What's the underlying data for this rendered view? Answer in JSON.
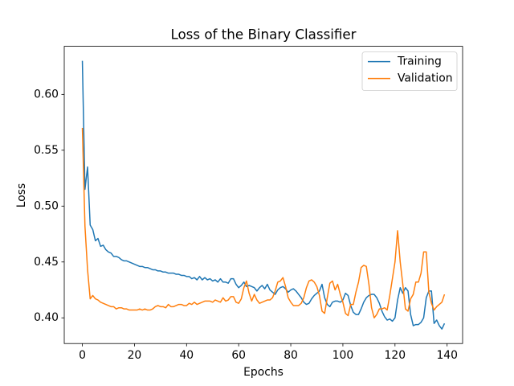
{
  "chart_data": {
    "type": "line",
    "title": "Loss of the Binary Classifier",
    "x_label": "Epochs",
    "y_label": "Loss",
    "x": [
      0,
      1,
      2,
      3,
      4,
      5,
      6,
      7,
      8,
      9,
      10,
      11,
      12,
      13,
      14,
      15,
      16,
      17,
      18,
      19,
      20,
      21,
      22,
      23,
      24,
      25,
      26,
      27,
      28,
      29,
      30,
      31,
      32,
      33,
      34,
      35,
      36,
      37,
      38,
      39,
      40,
      41,
      42,
      43,
      44,
      45,
      46,
      47,
      48,
      49,
      50,
      51,
      52,
      53,
      54,
      55,
      56,
      57,
      58,
      59,
      60,
      61,
      62,
      63,
      64,
      65,
      66,
      67,
      68,
      69,
      70,
      71,
      72,
      73,
      74,
      75,
      76,
      77,
      78,
      79,
      80,
      81,
      82,
      83,
      84,
      85,
      86,
      87,
      88,
      89,
      90,
      91,
      92,
      93,
      94,
      95,
      96,
      97,
      98,
      99,
      100,
      101,
      102,
      103,
      104,
      105,
      106,
      107,
      108,
      109,
      110,
      111,
      112,
      113,
      114,
      115,
      116,
      117,
      118,
      119,
      120,
      121,
      122,
      123,
      124,
      125,
      126,
      127,
      128,
      129,
      130,
      131,
      132,
      133,
      134,
      135,
      136,
      137,
      138,
      139
    ],
    "series": [
      {
        "name": "Training",
        "color": "#1f77b4",
        "values": [
          0.63,
          0.515,
          0.535,
          0.483,
          0.479,
          0.469,
          0.471,
          0.464,
          0.465,
          0.461,
          0.459,
          0.458,
          0.455,
          0.455,
          0.454,
          0.452,
          0.451,
          0.451,
          0.45,
          0.449,
          0.448,
          0.447,
          0.446,
          0.446,
          0.445,
          0.445,
          0.444,
          0.443,
          0.443,
          0.442,
          0.442,
          0.441,
          0.441,
          0.44,
          0.44,
          0.44,
          0.439,
          0.439,
          0.438,
          0.438,
          0.437,
          0.437,
          0.435,
          0.436,
          0.434,
          0.437,
          0.434,
          0.436,
          0.434,
          0.435,
          0.433,
          0.434,
          0.432,
          0.435,
          0.432,
          0.432,
          0.431,
          0.435,
          0.435,
          0.43,
          0.427,
          0.429,
          0.432,
          0.428,
          0.429,
          0.428,
          0.427,
          0.424,
          0.427,
          0.429,
          0.426,
          0.43,
          0.425,
          0.423,
          0.421,
          0.425,
          0.427,
          0.428,
          0.426,
          0.423,
          0.425,
          0.426,
          0.424,
          0.421,
          0.418,
          0.414,
          0.412,
          0.413,
          0.417,
          0.42,
          0.422,
          0.424,
          0.43,
          0.418,
          0.412,
          0.41,
          0.414,
          0.415,
          0.415,
          0.414,
          0.416,
          0.422,
          0.42,
          0.411,
          0.405,
          0.403,
          0.403,
          0.408,
          0.414,
          0.418,
          0.42,
          0.421,
          0.421,
          0.418,
          0.413,
          0.406,
          0.401,
          0.398,
          0.399,
          0.397,
          0.4,
          0.416,
          0.427,
          0.422,
          0.427,
          0.424,
          0.403,
          0.393,
          0.394,
          0.394,
          0.396,
          0.4,
          0.418,
          0.424,
          0.424,
          0.395,
          0.398,
          0.393,
          0.39,
          0.395
        ]
      },
      {
        "name": "Validation",
        "color": "#ff7f0e",
        "values": [
          0.57,
          0.482,
          0.443,
          0.417,
          0.42,
          0.417,
          0.416,
          0.414,
          0.413,
          0.412,
          0.411,
          0.41,
          0.41,
          0.408,
          0.409,
          0.409,
          0.408,
          0.408,
          0.407,
          0.407,
          0.407,
          0.407,
          0.408,
          0.407,
          0.408,
          0.407,
          0.407,
          0.408,
          0.41,
          0.411,
          0.41,
          0.41,
          0.409,
          0.412,
          0.41,
          0.41,
          0.411,
          0.412,
          0.412,
          0.411,
          0.411,
          0.413,
          0.412,
          0.414,
          0.412,
          0.413,
          0.414,
          0.415,
          0.415,
          0.415,
          0.414,
          0.416,
          0.415,
          0.414,
          0.418,
          0.415,
          0.416,
          0.419,
          0.419,
          0.414,
          0.413,
          0.417,
          0.427,
          0.433,
          0.422,
          0.415,
          0.421,
          0.416,
          0.413,
          0.414,
          0.415,
          0.416,
          0.416,
          0.418,
          0.424,
          0.432,
          0.433,
          0.436,
          0.428,
          0.418,
          0.414,
          0.411,
          0.411,
          0.411,
          0.413,
          0.418,
          0.427,
          0.433,
          0.434,
          0.432,
          0.428,
          0.42,
          0.406,
          0.404,
          0.418,
          0.431,
          0.433,
          0.425,
          0.43,
          0.421,
          0.414,
          0.404,
          0.402,
          0.412,
          0.412,
          0.423,
          0.432,
          0.445,
          0.447,
          0.446,
          0.43,
          0.409,
          0.4,
          0.403,
          0.408,
          0.408,
          0.409,
          0.407,
          0.42,
          0.435,
          0.45,
          0.478,
          0.45,
          0.43,
          0.408,
          0.406,
          0.417,
          0.421,
          0.432,
          0.432,
          0.44,
          0.459,
          0.459,
          0.423,
          0.413,
          0.407,
          0.41,
          0.412,
          0.414,
          0.421
        ]
      }
    ],
    "xlim": [
      -6.95,
      145.95
    ],
    "ylim": [
      0.377,
      0.643
    ],
    "xticks": [
      0,
      20,
      40,
      60,
      80,
      100,
      120,
      140
    ],
    "yticks": [
      {
        "value": 0.4,
        "label": "0.40"
      },
      {
        "value": 0.45,
        "label": "0.45"
      },
      {
        "value": 0.5,
        "label": "0.50"
      },
      {
        "value": 0.55,
        "label": "0.55"
      },
      {
        "value": 0.6,
        "label": "0.60"
      }
    ],
    "legend": "upper right"
  }
}
